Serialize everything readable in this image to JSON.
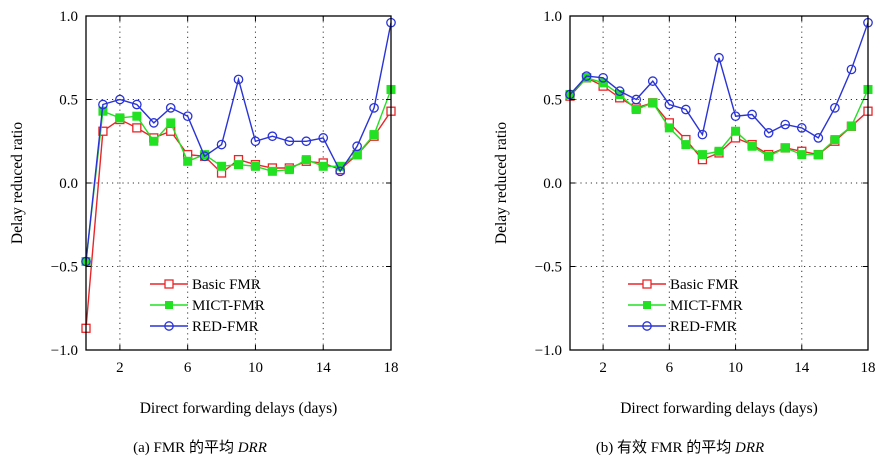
{
  "chart_data": [
    {
      "type": "line",
      "caption_prefix": "(a) FMR 的平均 ",
      "caption_italic": "DRR",
      "xlabel": "Direct forwarding delays (days)",
      "ylabel": "Delay reduced ratio",
      "xlim": [
        0,
        18
      ],
      "ylim": [
        -1.0,
        1.0
      ],
      "xticks": [
        2,
        6,
        10,
        14,
        18
      ],
      "yticks": [
        -1.0,
        -0.5,
        0.0,
        0.5,
        1.0
      ],
      "ytick_labels": [
        "−1.0",
        "−0.5",
        "0.0",
        "0.5",
        "1.0"
      ],
      "grid": true,
      "legend_position": "lower-center",
      "x": [
        0,
        1,
        2,
        3,
        4,
        5,
        6,
        7,
        8,
        9,
        10,
        11,
        12,
        13,
        14,
        15,
        16,
        17,
        18
      ],
      "series": [
        {
          "name": "Basic FMR",
          "color": "#e8262a",
          "marker": "open-square",
          "values": [
            -0.87,
            0.31,
            0.38,
            0.33,
            0.27,
            0.31,
            0.17,
            0.16,
            0.06,
            0.14,
            0.11,
            0.09,
            0.09,
            0.13,
            0.12,
            0.08,
            0.17,
            0.28,
            0.43
          ]
        },
        {
          "name": "MICT-FMR",
          "color": "#22e022",
          "marker": "filled-square",
          "values": [
            -0.47,
            0.43,
            0.39,
            0.4,
            0.25,
            0.36,
            0.13,
            0.17,
            0.1,
            0.11,
            0.1,
            0.07,
            0.08,
            0.14,
            0.1,
            0.1,
            0.17,
            0.29,
            0.56
          ]
        },
        {
          "name": "RED-FMR",
          "color": "#2a33d6",
          "marker": "open-circle",
          "values": [
            -0.47,
            0.47,
            0.5,
            0.47,
            0.36,
            0.45,
            0.4,
            0.16,
            0.23,
            0.62,
            0.25,
            0.28,
            0.25,
            0.25,
            0.27,
            0.07,
            0.22,
            0.45,
            0.96
          ]
        }
      ]
    },
    {
      "type": "line",
      "caption_prefix": "(b) 有效 FMR 的平均 ",
      "caption_italic": "DRR",
      "xlabel": "Direct forwarding delays (days)",
      "ylabel": "Delay reduced ratio",
      "xlim": [
        0,
        18
      ],
      "ylim": [
        -1.0,
        1.0
      ],
      "xticks": [
        2,
        6,
        10,
        14,
        18
      ],
      "yticks": [
        -1.0,
        -0.5,
        0.0,
        0.5,
        1.0
      ],
      "ytick_labels": [
        "−1.0",
        "−0.5",
        "0.0",
        "0.5",
        "1.0"
      ],
      "grid": true,
      "legend_position": "lower-center",
      "x": [
        0,
        1,
        2,
        3,
        4,
        5,
        6,
        7,
        8,
        9,
        10,
        11,
        12,
        13,
        14,
        15,
        16,
        17,
        18
      ],
      "series": [
        {
          "name": "Basic FMR",
          "color": "#e8262a",
          "marker": "open-square",
          "values": [
            0.52,
            0.63,
            0.58,
            0.51,
            0.45,
            0.48,
            0.36,
            0.26,
            0.14,
            0.18,
            0.27,
            0.23,
            0.17,
            0.21,
            0.19,
            0.17,
            0.25,
            0.34,
            0.43
          ]
        },
        {
          "name": "MICT-FMR",
          "color": "#22e022",
          "marker": "filled-square",
          "values": [
            0.53,
            0.63,
            0.6,
            0.53,
            0.44,
            0.48,
            0.33,
            0.23,
            0.17,
            0.19,
            0.31,
            0.22,
            0.16,
            0.21,
            0.17,
            0.17,
            0.26,
            0.34,
            0.56
          ]
        },
        {
          "name": "RED-FMR",
          "color": "#2a33d6",
          "marker": "open-circle",
          "values": [
            0.53,
            0.64,
            0.63,
            0.55,
            0.5,
            0.61,
            0.47,
            0.44,
            0.29,
            0.75,
            0.4,
            0.41,
            0.3,
            0.35,
            0.33,
            0.27,
            0.45,
            0.68,
            0.96
          ]
        }
      ]
    }
  ]
}
